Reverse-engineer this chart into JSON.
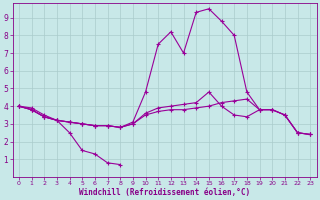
{
  "background_color": "#c8e8e8",
  "plot_bg_color": "#c8e8e8",
  "line_color": "#990099",
  "grid_color": "#aacccc",
  "xlabel": "Windchill (Refroidissement éolien,°C)",
  "xlabel_color": "#880088",
  "tick_color": "#880088",
  "xlim": [
    -0.5,
    23.5
  ],
  "ylim": [
    0,
    9.8
  ],
  "yticks": [
    1,
    2,
    3,
    4,
    5,
    6,
    7,
    8,
    9
  ],
  "xticks": [
    0,
    1,
    2,
    3,
    4,
    5,
    6,
    7,
    8,
    9,
    10,
    11,
    12,
    13,
    14,
    15,
    16,
    17,
    18,
    19,
    20,
    21,
    22,
    23
  ],
  "series": [
    {
      "x": [
        0,
        1,
        2,
        3,
        4,
        5,
        6,
        7,
        8
      ],
      "y": [
        4.0,
        3.9,
        3.5,
        3.2,
        2.5,
        1.5,
        1.3,
        0.8,
        0.7
      ]
    },
    {
      "x": [
        0,
        1,
        2,
        3,
        4,
        5,
        6,
        7,
        8,
        9,
        10,
        11,
        12,
        13,
        14,
        15,
        16,
        17,
        18,
        19,
        20,
        21,
        22,
        23
      ],
      "y": [
        4.0,
        3.8,
        3.4,
        3.2,
        3.1,
        3.0,
        2.9,
        2.9,
        2.8,
        3.0,
        3.5,
        3.7,
        3.8,
        3.8,
        3.9,
        4.0,
        4.2,
        4.3,
        4.4,
        3.8,
        3.8,
        3.5,
        2.5,
        2.4
      ]
    },
    {
      "x": [
        0,
        1,
        2,
        3,
        4,
        5,
        6,
        7,
        8,
        9,
        10,
        11,
        12,
        13,
        14,
        15,
        16,
        17,
        18,
        19,
        20,
        21,
        22,
        23
      ],
      "y": [
        4.0,
        3.8,
        3.4,
        3.2,
        3.1,
        3.0,
        2.9,
        2.9,
        2.8,
        3.0,
        3.6,
        3.9,
        4.0,
        4.1,
        4.2,
        4.8,
        4.0,
        3.5,
        3.4,
        3.8,
        3.8,
        3.5,
        2.5,
        2.4
      ]
    },
    {
      "x": [
        0,
        1,
        2,
        3,
        4,
        5,
        6,
        7,
        8,
        9,
        10,
        11,
        12,
        13,
        14,
        15,
        16,
        17,
        18,
        19,
        20,
        21,
        22,
        23
      ],
      "y": [
        4.0,
        3.8,
        3.4,
        3.2,
        3.1,
        3.0,
        2.9,
        2.9,
        2.8,
        3.1,
        4.8,
        7.5,
        8.2,
        7.0,
        9.3,
        9.5,
        8.8,
        8.0,
        4.8,
        3.8,
        3.8,
        3.5,
        2.5,
        2.4
      ]
    }
  ]
}
